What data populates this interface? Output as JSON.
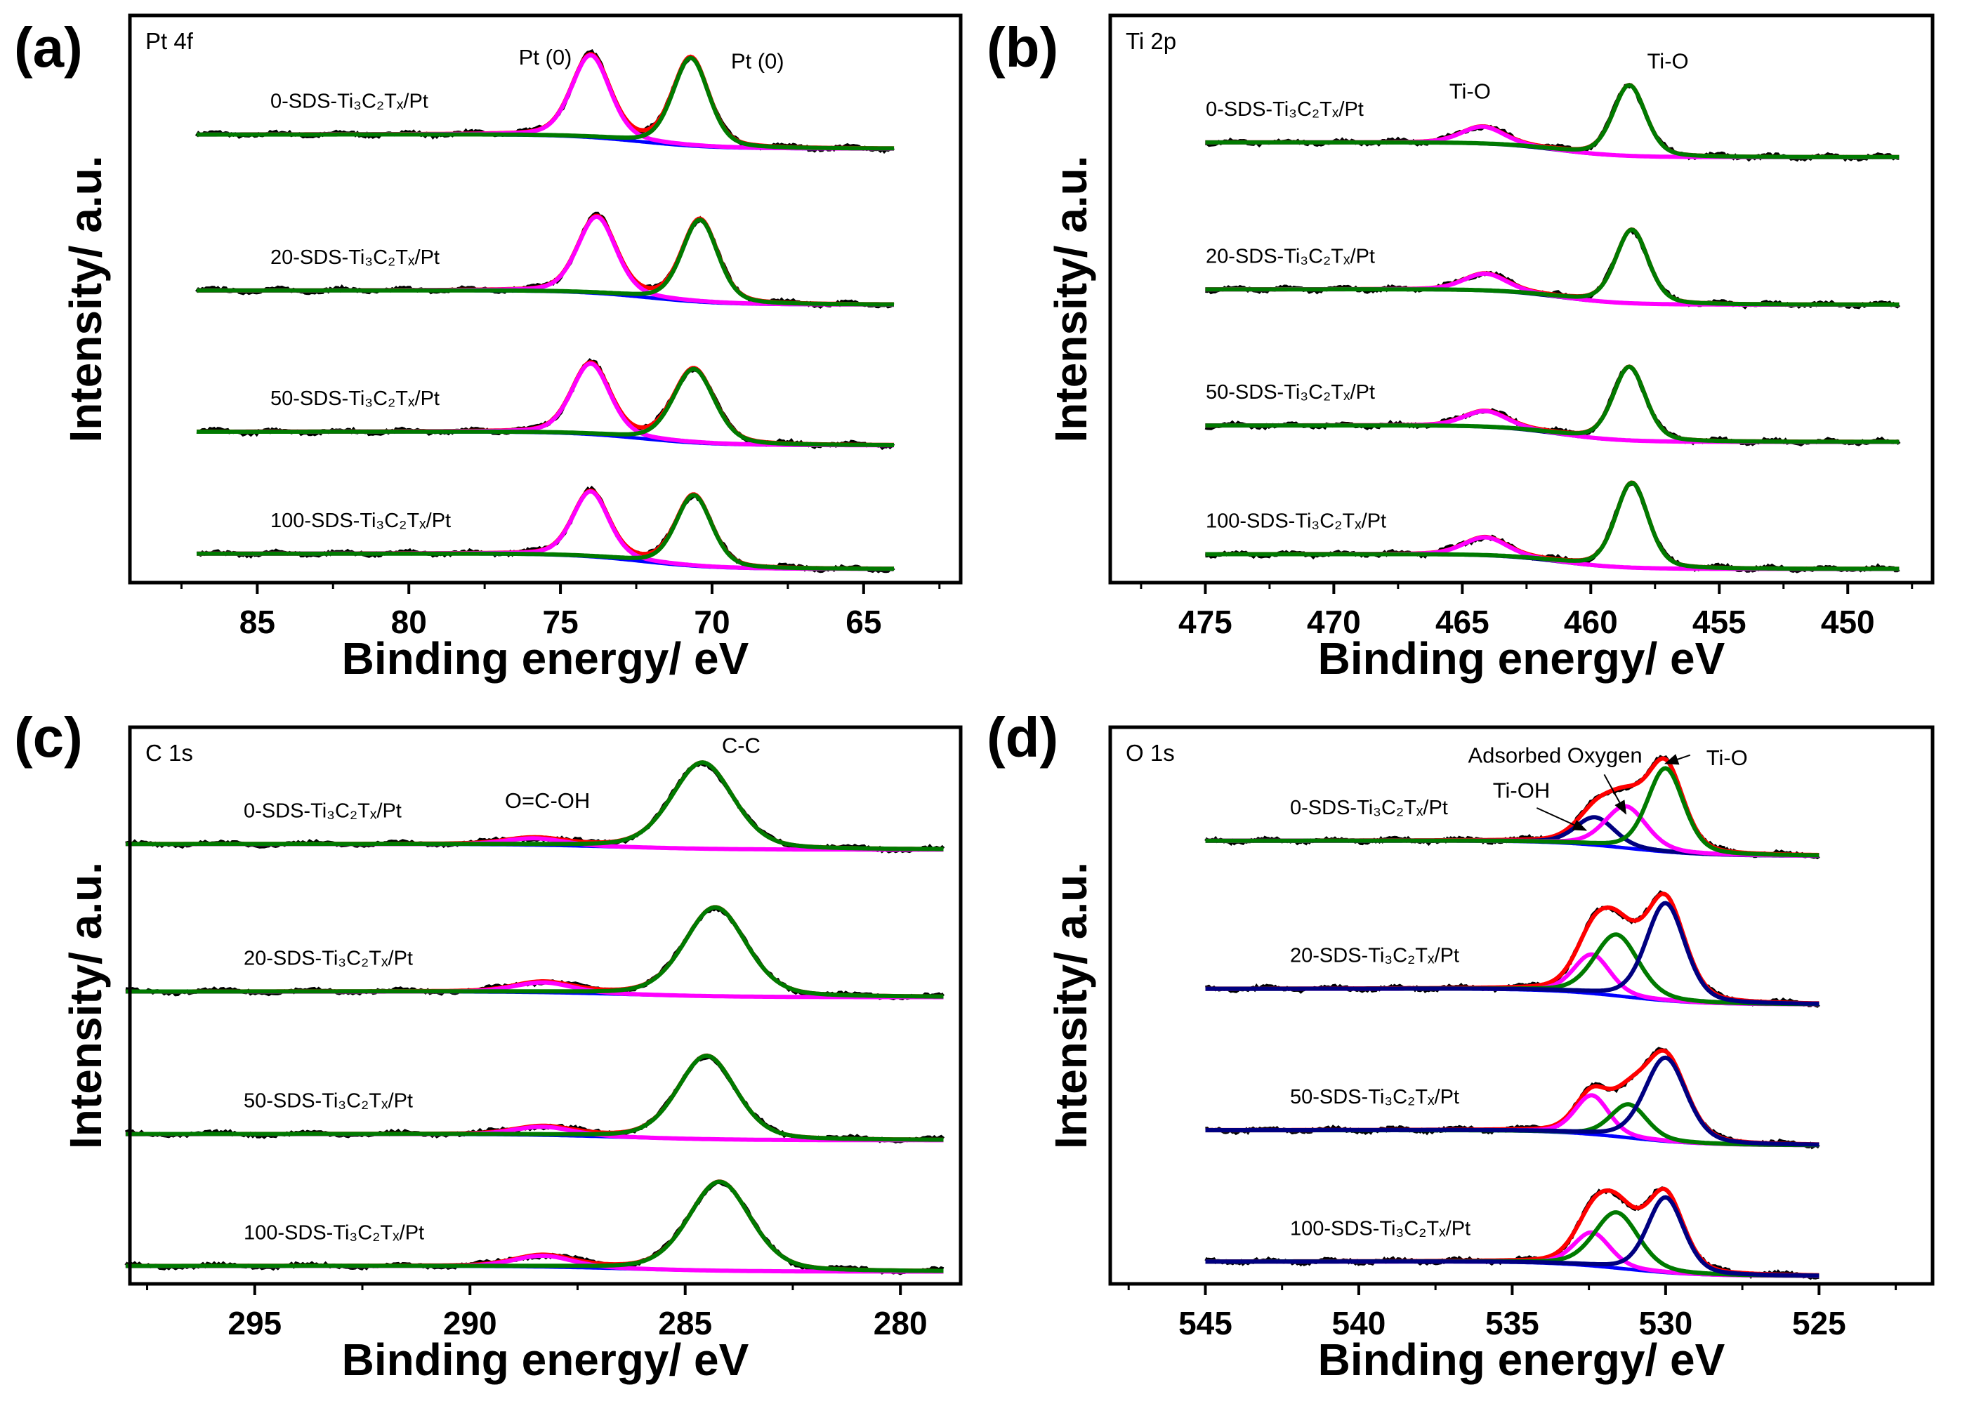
{
  "chart_data": [
    {
      "id": "a",
      "type": "line",
      "panel_label": "(a)",
      "title": "Pt 4f",
      "xlabel": "Binding energy/ eV",
      "ylabel": "Intensity/ a.u.",
      "xlim": [
        89.2,
        61.8
      ],
      "ylim": [
        0,
        100
      ],
      "data_range": [
        87,
        64
      ],
      "xticks": [
        85,
        80,
        75,
        70,
        65
      ],
      "minor_xticks": [
        87.5,
        82.5,
        77.5,
        72.5,
        67.5,
        62.5
      ],
      "xtick_labels": [
        "85",
        "80",
        "75",
        "70",
        "65"
      ],
      "background_color": "#0000ff",
      "samples": [
        {
          "name": "0-SDS-Ti₃C₂Tₓ/Pt",
          "baseline": [
            79,
            76.5
          ],
          "peaks": [
            {
              "center": 74.0,
              "height": 14.5,
              "fwhm": 1.5,
              "color": "#ff00ff"
            },
            {
              "center": 70.7,
              "height": 15.5,
              "fwhm": 1.4,
              "color": "#007a00"
            }
          ]
        },
        {
          "name": "20-SDS-Ti₃C₂Tₓ/Pt",
          "baseline": [
            51.5,
            49
          ],
          "peaks": [
            {
              "center": 73.8,
              "height": 13.5,
              "fwhm": 1.5,
              "color": "#ff00ff"
            },
            {
              "center": 70.4,
              "height": 14.5,
              "fwhm": 1.4,
              "color": "#007a00"
            }
          ]
        },
        {
          "name": "50-SDS-Ti₃C₂Tₓ/Pt",
          "baseline": [
            26.6,
            24.2
          ],
          "peaks": [
            {
              "center": 74.0,
              "height": 12.5,
              "fwhm": 1.5,
              "color": "#ff00ff"
            },
            {
              "center": 70.6,
              "height": 13.0,
              "fwhm": 1.6,
              "color": "#007a00"
            }
          ]
        },
        {
          "name": "100-SDS-Ti₃C₂Tₓ/Pt",
          "baseline": [
            5.1,
            2.4
          ],
          "peaks": [
            {
              "center": 74.0,
              "height": 11.5,
              "fwhm": 1.4,
              "color": "#ff00ff"
            },
            {
              "center": 70.6,
              "height": 12.5,
              "fwhm": 1.4,
              "color": "#007a00"
            }
          ]
        }
      ],
      "annotations": [
        {
          "text": "Pt (0)",
          "x": 75.5,
          "y": 92.7
        },
        {
          "text": "Pt (0)",
          "x": 68.5,
          "y": 92.0
        }
      ]
    },
    {
      "id": "b",
      "type": "line",
      "panel_label": "(b)",
      "title": "Ti 2p",
      "xlabel": "Binding energy/ eV",
      "ylabel": "Intensity/ a.u.",
      "xlim": [
        478.7,
        446.7
      ],
      "ylim": [
        0,
        100
      ],
      "data_range": [
        475,
        448
      ],
      "xticks": [
        475,
        470,
        465,
        460,
        455,
        450
      ],
      "minor_xticks": [
        477.5,
        472.5,
        467.5,
        462.5,
        457.5,
        452.5,
        447.5
      ],
      "xtick_labels": [
        "475",
        "470",
        "465",
        "460",
        "455",
        "450"
      ],
      "background_color": "#000080",
      "samples": [
        {
          "name": "0-SDS-Ti₃C₂Tₓ/Pt",
          "baseline": [
            77.6,
            75
          ],
          "peaks": [
            {
              "center": 464.2,
              "height": 3.0,
              "fwhm": 2.0,
              "color": "#ff00ff"
            },
            {
              "center": 458.5,
              "height": 12.5,
              "fwhm": 1.5,
              "color": "#007a00"
            }
          ]
        },
        {
          "name": "20-SDS-Ti₃C₂Tₓ/Pt",
          "baseline": [
            51.7,
            49
          ],
          "peaks": [
            {
              "center": 464.1,
              "height": 3.0,
              "fwhm": 2.0,
              "color": "#ff00ff"
            },
            {
              "center": 458.4,
              "height": 13.0,
              "fwhm": 1.5,
              "color": "#007a00"
            }
          ]
        },
        {
          "name": "50-SDS-Ti₃C₂Tₓ/Pt",
          "baseline": [
            27.7,
            24.8
          ],
          "peaks": [
            {
              "center": 464.1,
              "height": 2.8,
              "fwhm": 2.0,
              "color": "#ff00ff"
            },
            {
              "center": 458.5,
              "height": 13.0,
              "fwhm": 1.5,
              "color": "#007a00"
            }
          ]
        },
        {
          "name": "100-SDS-Ti₃C₂Tₓ/Pt",
          "baseline": [
            5.0,
            2.4
          ],
          "peaks": [
            {
              "center": 464.1,
              "height": 3.2,
              "fwhm": 2.0,
              "color": "#ff00ff"
            },
            {
              "center": 458.4,
              "height": 15.0,
              "fwhm": 1.5,
              "color": "#007a00"
            }
          ]
        }
      ],
      "annotations": [
        {
          "text": "Ti-O",
          "x": 464.7,
          "y": 86.7
        },
        {
          "text": "Ti-O",
          "x": 457.0,
          "y": 92.0
        }
      ]
    },
    {
      "id": "c",
      "type": "line",
      "panel_label": "(c)",
      "title": "C 1s",
      "xlabel": "Binding energy/ eV",
      "ylabel": "Intensity/ a.u.",
      "xlim": [
        297.9,
        278.6
      ],
      "ylim": [
        0,
        100
      ],
      "data_range": [
        298,
        279
      ],
      "xticks": [
        295,
        290,
        285,
        280
      ],
      "minor_xticks": [
        297.5,
        292.5,
        287.5,
        282.5
      ],
      "xtick_labels": [
        "295",
        "290",
        "285",
        "280"
      ],
      "background_color": "#0000ff",
      "samples": [
        {
          "name": "0-SDS-Ti₃C₂Tₓ/Pt",
          "baseline": [
            79,
            78
          ],
          "peaks": [
            {
              "center": 288.5,
              "height": 1.2,
              "fwhm": 1.6,
              "color": "#ff00ff"
            },
            {
              "center": 284.6,
              "height": 15.5,
              "fwhm": 1.7,
              "color": "#007a00"
            }
          ]
        },
        {
          "name": "20-SDS-Ti₃C₂Tₓ/Pt",
          "baseline": [
            52.5,
            51.5
          ],
          "peaks": [
            {
              "center": 288.3,
              "height": 1.8,
              "fwhm": 1.6,
              "color": "#ff00ff"
            },
            {
              "center": 284.3,
              "height": 16.0,
              "fwhm": 1.7,
              "color": "#007a00"
            }
          ]
        },
        {
          "name": "50-SDS-Ti₃C₂Tₓ/Pt",
          "baseline": [
            26.9,
            25.8
          ],
          "peaks": [
            {
              "center": 288.3,
              "height": 1.5,
              "fwhm": 1.6,
              "color": "#ff00ff"
            },
            {
              "center": 284.5,
              "height": 15.0,
              "fwhm": 1.6,
              "color": "#007a00"
            }
          ]
        },
        {
          "name": "100-SDS-Ti₃C₂Tₓ/Pt",
          "baseline": [
            3.2,
            2.2
          ],
          "peaks": [
            {
              "center": 288.3,
              "height": 2.0,
              "fwhm": 1.6,
              "color": "#ff00ff"
            },
            {
              "center": 284.2,
              "height": 16.0,
              "fwhm": 1.7,
              "color": "#007a00"
            }
          ]
        }
      ],
      "annotations": [
        {
          "text": "O=C-OH",
          "x": 288.2,
          "y": 86.9
        },
        {
          "text": "C-C",
          "x": 283.7,
          "y": 96.8
        }
      ]
    },
    {
      "id": "d",
      "type": "line",
      "panel_label": "(d)",
      "title": "O 1s",
      "xlabel": "Binding energy/ eV",
      "ylabel": "Intensity/ a.u.",
      "xlim": [
        548.1,
        521.3
      ],
      "ylim": [
        0,
        100
      ],
      "data_range": [
        545,
        525
      ],
      "xticks": [
        545,
        540,
        535,
        530,
        525
      ],
      "minor_xticks": [
        547.5,
        542.5,
        537.5,
        532.5,
        527.5,
        522.5
      ],
      "xtick_labels": [
        "545",
        "540",
        "535",
        "530",
        "525"
      ],
      "background_color": "#0000ff",
      "samples": [
        {
          "name": "0-SDS-Ti₃C₂Tₓ/Pt",
          "baseline": [
            79.6,
            76.9
          ],
          "peaks": [
            {
              "center": 532.3,
              "height": 5.0,
              "fwhm": 1.5,
              "color": "#000080"
            },
            {
              "center": 531.3,
              "height": 7.5,
              "fwhm": 1.6,
              "color": "#ff00ff"
            },
            {
              "center": 530.0,
              "height": 15.0,
              "fwhm": 1.4,
              "color": "#007a00"
            }
          ]
        },
        {
          "name": "20-SDS-Ti₃C₂Tₓ/Pt",
          "baseline": [
            53,
            50.2
          ],
          "peaks": [
            {
              "center": 532.4,
              "height": 7.0,
              "fwhm": 1.4,
              "color": "#ff00ff"
            },
            {
              "center": 531.6,
              "height": 11.0,
              "fwhm": 1.7,
              "color": "#007a00"
            },
            {
              "center": 530.0,
              "height": 17.5,
              "fwhm": 1.5,
              "color": "#000080"
            }
          ]
        },
        {
          "name": "50-SDS-Ti₃C₂Tₓ/Pt",
          "baseline": [
            27.6,
            24.9
          ],
          "peaks": [
            {
              "center": 532.4,
              "height": 7.0,
              "fwhm": 1.3,
              "color": "#ff00ff"
            },
            {
              "center": 531.2,
              "height": 6.0,
              "fwhm": 1.4,
              "color": "#007a00"
            },
            {
              "center": 530.0,
              "height": 15.0,
              "fwhm": 1.6,
              "color": "#000080"
            }
          ]
        },
        {
          "name": "100-SDS-Ti₃C₂Tₓ/Pt",
          "baseline": [
            4.0,
            1.4
          ],
          "peaks": [
            {
              "center": 532.4,
              "height": 6.0,
              "fwhm": 1.4,
              "color": "#ff00ff"
            },
            {
              "center": 531.6,
              "height": 10.0,
              "fwhm": 1.7,
              "color": "#007a00"
            },
            {
              "center": 530.0,
              "height": 13.5,
              "fwhm": 1.4,
              "color": "#000080"
            }
          ]
        }
      ],
      "annotations": [
        {
          "text": "Adsorbed Oxygen",
          "x": 533.6,
          "y": 95.0,
          "arrow_from": [
            532.0,
            91.5
          ],
          "arrow_to": [
            531.3,
            84.5
          ]
        },
        {
          "text": "Ti-OH",
          "x": 534.7,
          "y": 88.7,
          "arrow_from": [
            534.2,
            85.5
          ],
          "arrow_to": [
            532.6,
            81.5
          ]
        },
        {
          "text": "Ti-O",
          "x": 528.0,
          "y": 94.6,
          "arrow_from": [
            529.2,
            95.0
          ],
          "arrow_to": [
            530.0,
            93.5
          ]
        }
      ]
    }
  ],
  "series_legend": {
    "raw_data": "#000000",
    "envelope": "#ff0000",
    "background": "#0000ff"
  }
}
